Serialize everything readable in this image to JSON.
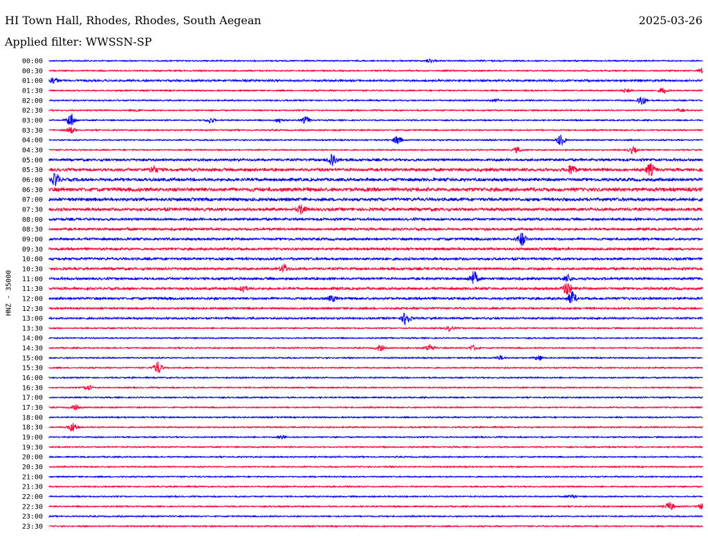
{
  "header": {
    "station": "HI Town Hall, Rhodes, Rhodes, South Aegean",
    "date": "2025-03-26",
    "filter": "Applied filter: WWSSN-SP"
  },
  "colors": {
    "even_trace": "#0000ff",
    "odd_trace": "#ff0033",
    "background": "#ffffff"
  },
  "chart_data": {
    "type": "line",
    "title": "HI Town Hall, Rhodes, Rhodes, South Aegean",
    "ylabel": "HNZ - 35000",
    "xlabel": "",
    "trace_minutes": 30,
    "tick_labels": [
      "00:00",
      "00:30",
      "01:00",
      "01:30",
      "02:00",
      "02:30",
      "03:00",
      "03:30",
      "04:00",
      "04:30",
      "05:00",
      "05:30",
      "06:00",
      "06:30",
      "07:00",
      "07:30",
      "08:00",
      "08:30",
      "09:00",
      "09:30",
      "10:00",
      "10:30",
      "11:00",
      "11:30",
      "12:00",
      "12:30",
      "13:00",
      "13:30",
      "14:00",
      "14:30",
      "15:00",
      "15:30",
      "16:00",
      "16:30",
      "17:00",
      "17:30",
      "18:00",
      "18:30",
      "19:00",
      "19:30",
      "20:00",
      "20:30",
      "21:00",
      "21:30",
      "22:00",
      "22:30",
      "23:00",
      "23:30"
    ],
    "noise_level": [
      1,
      1,
      2,
      1,
      1,
      1,
      1,
      1,
      1,
      1,
      3,
      4,
      4,
      5,
      4,
      4,
      3,
      3,
      3,
      3,
      3,
      3,
      3,
      3,
      3,
      2,
      2,
      1,
      1,
      1,
      1,
      1,
      1,
      1,
      1,
      1,
      1,
      1,
      1,
      1,
      1,
      1,
      1,
      1,
      1,
      1,
      1,
      1
    ],
    "events": [
      {
        "row": 0,
        "minute": 17.5,
        "amp": 3
      },
      {
        "row": 1,
        "minute": 30,
        "amp": 4
      },
      {
        "row": 2,
        "minute": 0.2,
        "amp": 5
      },
      {
        "row": 3,
        "minute": 28.2,
        "amp": 4
      },
      {
        "row": 3,
        "minute": 26.5,
        "amp": 3
      },
      {
        "row": 4,
        "minute": 27.2,
        "amp": 8
      },
      {
        "row": 4,
        "minute": 20.5,
        "amp": 2
      },
      {
        "row": 5,
        "minute": 4,
        "amp": 2
      },
      {
        "row": 5,
        "minute": 29,
        "amp": 2
      },
      {
        "row": 6,
        "minute": 1,
        "amp": 10
      },
      {
        "row": 6,
        "minute": 7.4,
        "amp": 4
      },
      {
        "row": 6,
        "minute": 10.6,
        "amp": 4
      },
      {
        "row": 6,
        "minute": 11.8,
        "amp": 5
      },
      {
        "row": 7,
        "minute": 1,
        "amp": 5
      },
      {
        "row": 8,
        "minute": 16,
        "amp": 6
      },
      {
        "row": 8,
        "minute": 23.5,
        "amp": 8
      },
      {
        "row": 9,
        "minute": 21.5,
        "amp": 4
      },
      {
        "row": 9,
        "minute": 26.8,
        "amp": 5
      },
      {
        "row": 10,
        "minute": 13,
        "amp": 11
      },
      {
        "row": 11,
        "minute": 24,
        "amp": 7
      },
      {
        "row": 11,
        "minute": 27.6,
        "amp": 8
      },
      {
        "row": 11,
        "minute": 4.8,
        "amp": 5
      },
      {
        "row": 12,
        "minute": 0.3,
        "amp": 9
      },
      {
        "row": 15,
        "minute": 11.6,
        "amp": 6
      },
      {
        "row": 18,
        "minute": 21.7,
        "amp": 9
      },
      {
        "row": 21,
        "minute": 10.8,
        "amp": 6
      },
      {
        "row": 22,
        "minute": 19.5,
        "amp": 10
      },
      {
        "row": 22,
        "minute": 23.8,
        "amp": 5
      },
      {
        "row": 23,
        "minute": 23.8,
        "amp": 10
      },
      {
        "row": 23,
        "minute": 8.9,
        "amp": 5
      },
      {
        "row": 24,
        "minute": 24,
        "amp": 9
      },
      {
        "row": 24,
        "minute": 13,
        "amp": 4
      },
      {
        "row": 26,
        "minute": 16.4,
        "amp": 10
      },
      {
        "row": 27,
        "minute": 18.4,
        "amp": 4
      },
      {
        "row": 29,
        "minute": 17.5,
        "amp": 6
      },
      {
        "row": 29,
        "minute": 15.2,
        "amp": 5
      },
      {
        "row": 29,
        "minute": 19.5,
        "amp": 4
      },
      {
        "row": 30,
        "minute": 22.5,
        "amp": 4
      },
      {
        "row": 30,
        "minute": 20.7,
        "amp": 3
      },
      {
        "row": 31,
        "minute": 5,
        "amp": 9
      },
      {
        "row": 33,
        "minute": 1.8,
        "amp": 4
      },
      {
        "row": 35,
        "minute": 1.2,
        "amp": 4
      },
      {
        "row": 37,
        "minute": 1.1,
        "amp": 7
      },
      {
        "row": 38,
        "minute": 10.7,
        "amp": 3
      },
      {
        "row": 44,
        "minute": 24,
        "amp": 3
      },
      {
        "row": 45,
        "minute": 28.5,
        "amp": 6
      },
      {
        "row": 45,
        "minute": 30,
        "amp": 5
      }
    ]
  }
}
